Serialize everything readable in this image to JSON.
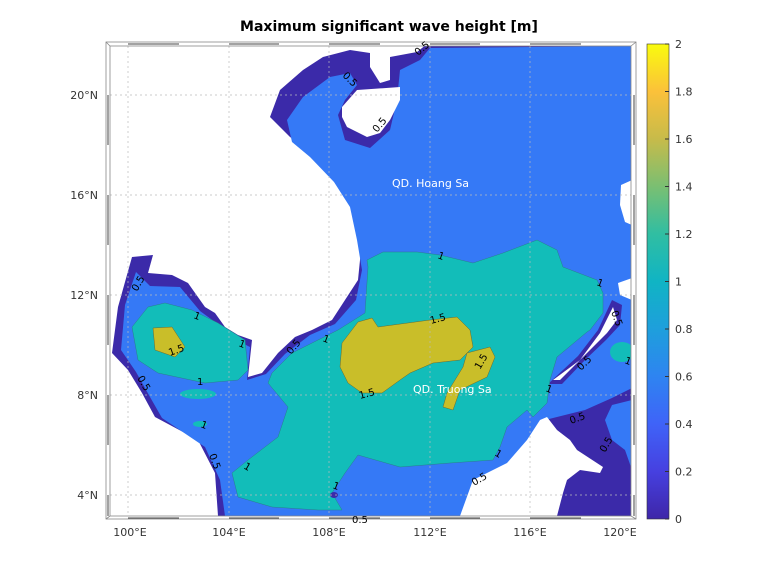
{
  "title": "Maximum significant wave height [m]",
  "map": {
    "lon_range": [
      99.3,
      120.3
    ],
    "lat_range": [
      3.2,
      22.0
    ],
    "x_tick_labels": [
      "100°E",
      "104°E",
      "108°E",
      "112°E",
      "116°E",
      "120°E"
    ],
    "y_tick_labels": [
      "20°N",
      "16°N",
      "12°N",
      "8°N",
      "4°N"
    ],
    "place_labels": [
      "QD. Hoang Sa",
      "QD. Truong Sa"
    ],
    "contour_levels": [
      0.5,
      1,
      1.5
    ],
    "contour_labels": [
      "0.5",
      "0.5",
      "0.5",
      "1",
      "1",
      "0.5",
      "0.5",
      "1",
      "1.5",
      "1",
      "1",
      "0.5",
      "1",
      "0.5",
      "1",
      "0.5",
      "1",
      "1.5",
      "1.5",
      "1.5",
      "1",
      "0.5",
      "0.5",
      "0.5",
      "1",
      "1",
      "0.5",
      "1",
      "0.5"
    ],
    "fill_colors": {
      "below_0_5": "#3b2aa9",
      "0_5_to_1": "#3579f6",
      "1_to_1_5": "#12bdb9",
      "above_1_5": "#c9be29",
      "land": "#ffffff"
    }
  },
  "colorbar": {
    "range": [
      0,
      2
    ],
    "colormap": "parula",
    "tick_labels": [
      "0",
      "0.2",
      "0.4",
      "0.6",
      "0.8",
      "1",
      "1.2",
      "1.4",
      "1.6",
      "1.8",
      "2"
    ]
  }
}
